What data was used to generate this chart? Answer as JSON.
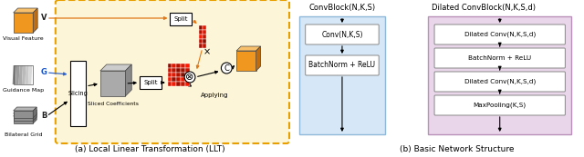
{
  "fig_width": 6.4,
  "fig_height": 1.73,
  "dpi": 100,
  "bg_color": "#ffffff",
  "left_panel": {
    "title": "(a) Local Linear Transformation (LLT)",
    "box_bg": "#fdf5d8",
    "box_edge": "#e8a000",
    "visual_feature_label": "Visual Feature",
    "guidance_map_label": "Guidance Map",
    "bilateral_grid_label": "Bilateral Grid",
    "sliced_coeff_label": "Sliced Coefficients",
    "slicing_label": "Slicing",
    "split_label": "Split",
    "applying_label": "Applying",
    "v_label": "V",
    "g_label": "G",
    "b_label": "B"
  },
  "right_panel": {
    "title": "(b) Basic Network Structure",
    "conv_title": "ConvBlock(N,K,S)",
    "dilated_title": "Dilated ConvBlock(N,K,S,d)",
    "conv_bg": "#d6e8f7",
    "conv_border": "#90b8d8",
    "dilated_bg": "#ead6ea",
    "dilated_border": "#b890b8",
    "conv_items": [
      "Conv(N,K,S)",
      "BatchNorm + ReLU"
    ],
    "dilated_items": [
      "Dilated Conv(N,K,S,d)",
      "BatchNorm + ReLU",
      "Dilated Conv(N,K,S,d)",
      "MaxPooling(K,S)"
    ]
  }
}
